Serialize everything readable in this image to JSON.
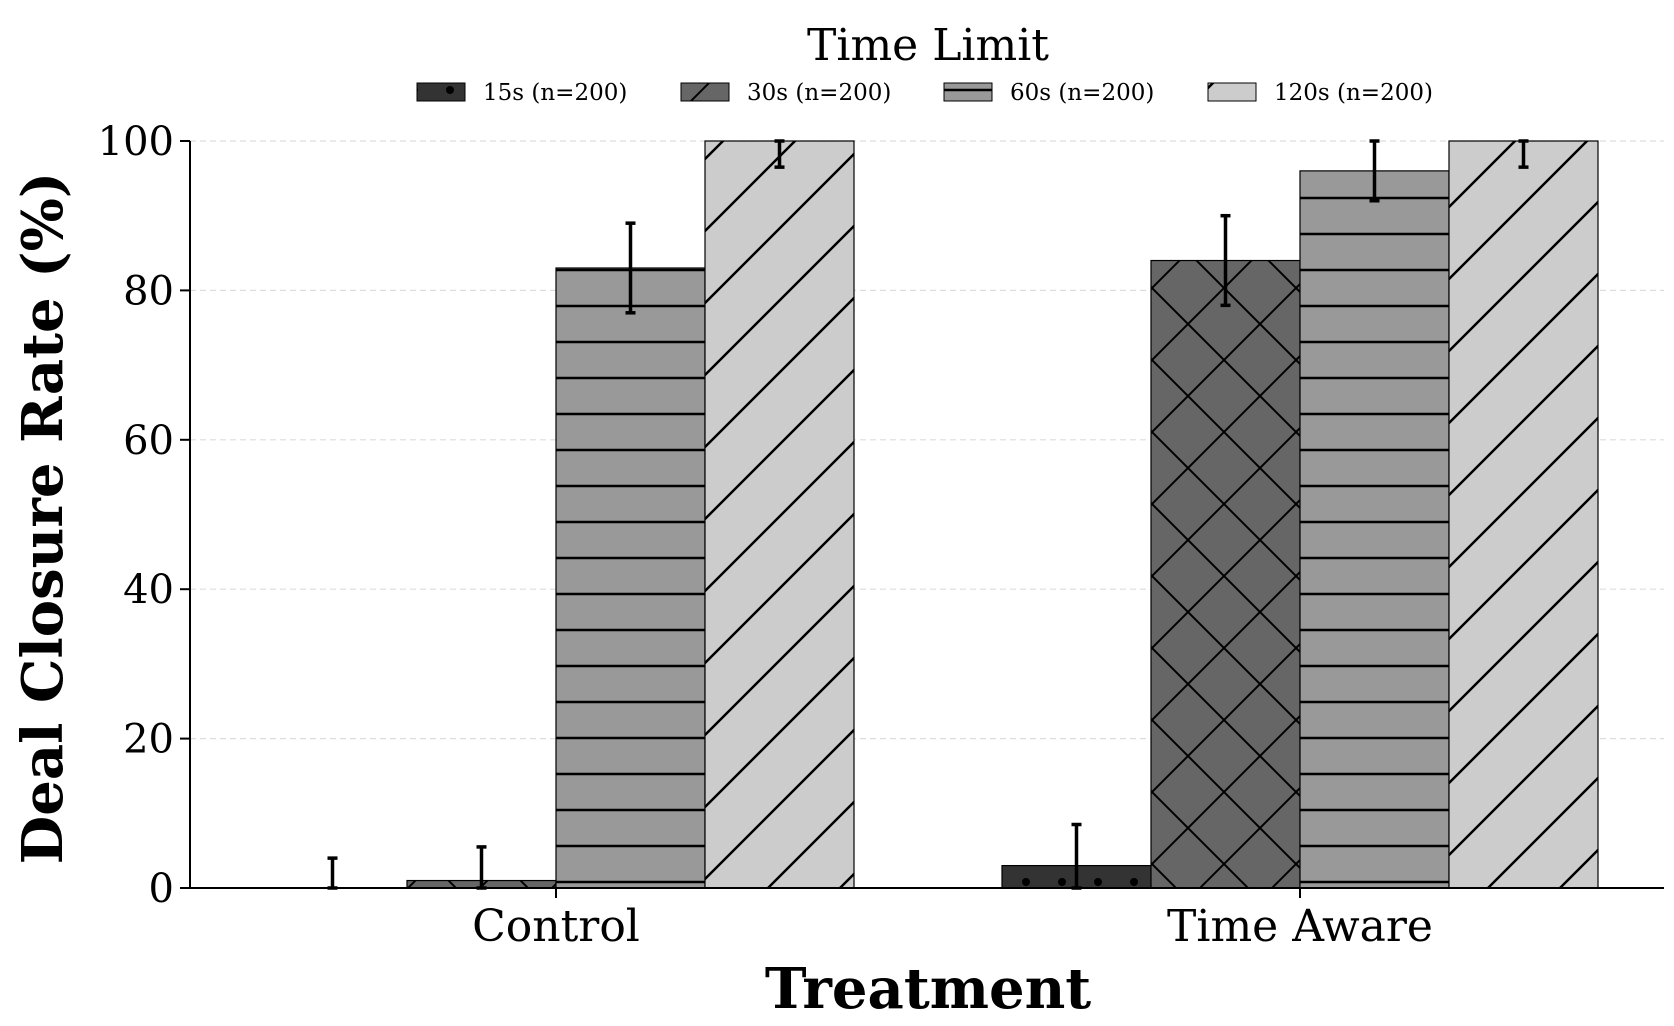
{
  "chart_data": {
    "type": "bar",
    "title": "",
    "xlabel": "Treatment",
    "ylabel": "Deal Closure Rate (%)",
    "ylim": [
      0,
      100
    ],
    "yticks": [
      0,
      20,
      40,
      60,
      80,
      100
    ],
    "grid": "y-dashed",
    "categories": [
      "Control",
      "Time Aware"
    ],
    "legend": {
      "title": "Time Limit",
      "placement": "top-center"
    },
    "series": [
      {
        "name": "15s (n=200)",
        "values": [
          0,
          3
        ],
        "errors": [
          4,
          5.5
        ],
        "color": "#333333",
        "hatch": "dots"
      },
      {
        "name": "30s (n=200)",
        "values": [
          1,
          84
        ],
        "errors": [
          4.5,
          6
        ],
        "color": "#666666",
        "hatch": "cross"
      },
      {
        "name": "60s (n=200)",
        "values": [
          83,
          96
        ],
        "errors": [
          6,
          4
        ],
        "color": "#999999",
        "hatch": "horizontal"
      },
      {
        "name": "120s (n=200)",
        "values": [
          100,
          100
        ],
        "errors": [
          3.5,
          3.5
        ],
        "color": "#cccccc",
        "hatch": "diagonal"
      }
    ]
  }
}
